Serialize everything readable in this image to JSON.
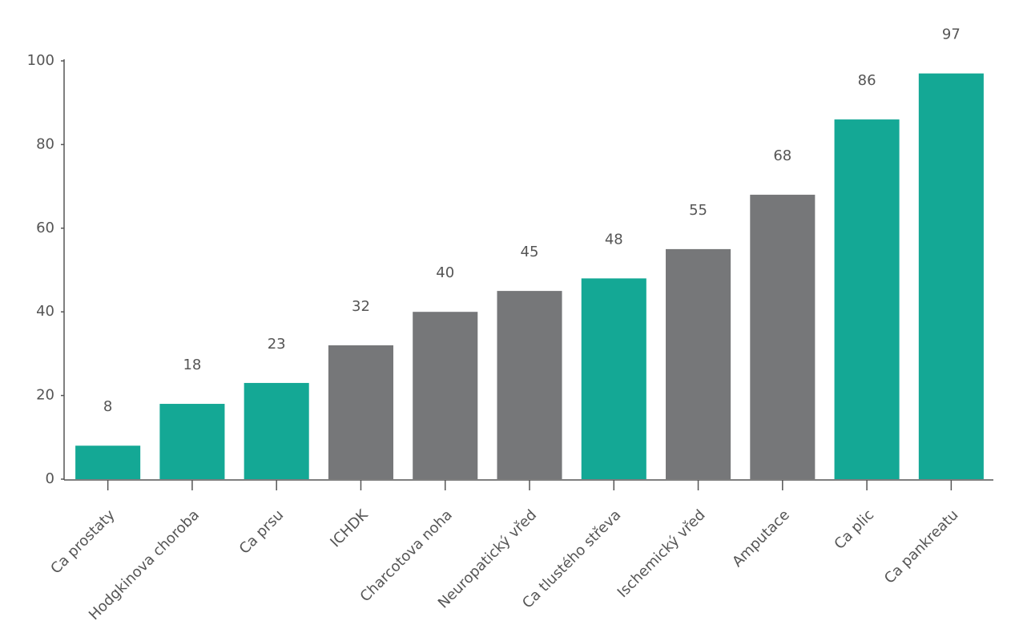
{
  "chart_data": {
    "type": "bar",
    "categories": [
      "Ca prostaty",
      "Hodgkinova choroba",
      "Ca prsu",
      "ICHDK",
      "Charcotova noha",
      "Neuropatický vřed",
      "Ca tlustého střeva",
      "Ischemický vřed",
      "Amputace",
      "Ca plic",
      "Ca pankreatu"
    ],
    "values": [
      8,
      18,
      23,
      32,
      40,
      45,
      48,
      55,
      68,
      86,
      97
    ],
    "colors": [
      "#14a895",
      "#14a895",
      "#14a895",
      "#767779",
      "#767779",
      "#767779",
      "#14a895",
      "#767779",
      "#767779",
      "#14a895",
      "#14a895"
    ],
    "ylim": [
      0,
      100
    ],
    "yticks": [
      0,
      20,
      40,
      60,
      80,
      100
    ],
    "grid": false
  }
}
